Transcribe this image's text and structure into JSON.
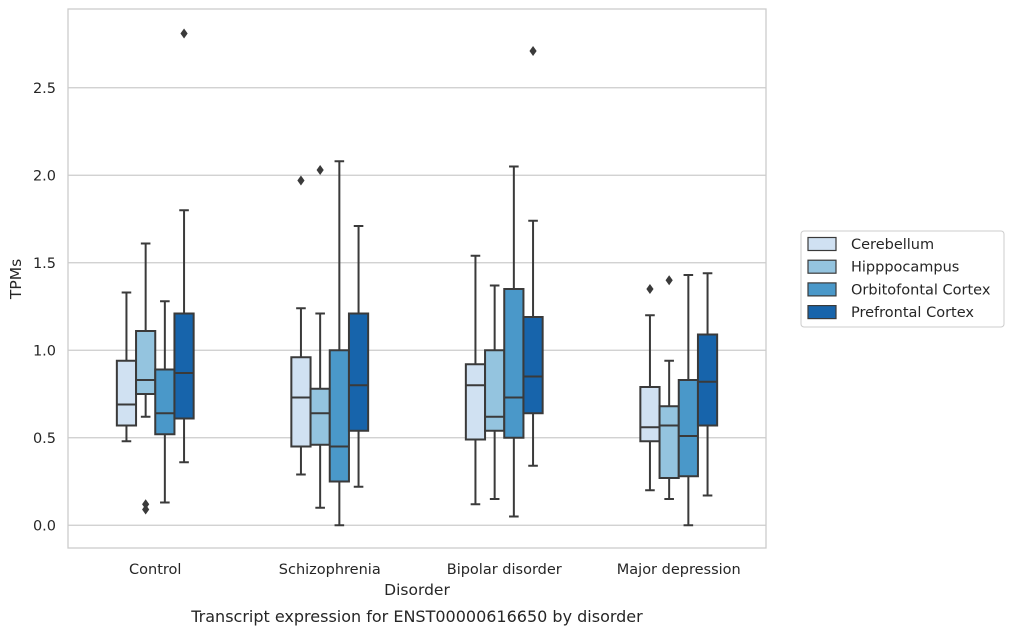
{
  "chart_data": {
    "type": "box",
    "caption": "Transcript expression for ENST00000616650 by disorder",
    "xlabel": "Disorder",
    "ylabel": "TPMs",
    "ylim": [
      -0.13,
      2.95
    ],
    "yticks": [
      0.0,
      0.5,
      1.0,
      1.5,
      2.0,
      2.5
    ],
    "ytick_labels": [
      "0.0",
      "0.5",
      "1.0",
      "1.5",
      "2.0",
      "2.5"
    ],
    "categories": [
      "Control",
      "Schizophrenia",
      "Bipolar disorder",
      "Major depression"
    ],
    "grid": "horizontal",
    "legend_position": "right",
    "series": [
      {
        "name": "Cerebellum",
        "color": "#d0e1f2",
        "boxes": [
          {
            "whislo": 0.48,
            "q1": 0.57,
            "med": 0.69,
            "q3": 0.94,
            "whishi": 1.33,
            "fliers": []
          },
          {
            "whislo": 0.29,
            "q1": 0.45,
            "med": 0.73,
            "q3": 0.96,
            "whishi": 1.24,
            "fliers": [
              1.97
            ]
          },
          {
            "whislo": 0.12,
            "q1": 0.49,
            "med": 0.8,
            "q3": 0.92,
            "whishi": 1.54,
            "fliers": []
          },
          {
            "whislo": 0.2,
            "q1": 0.48,
            "med": 0.56,
            "q3": 0.79,
            "whishi": 1.2,
            "fliers": [
              1.35
            ]
          }
        ]
      },
      {
        "name": "Hipppocampus",
        "color": "#94c4df",
        "boxes": [
          {
            "whislo": 0.62,
            "q1": 0.75,
            "med": 0.83,
            "q3": 1.11,
            "whishi": 1.61,
            "fliers": [
              0.12,
              0.09
            ]
          },
          {
            "whislo": 0.1,
            "q1": 0.46,
            "med": 0.64,
            "q3": 0.78,
            "whishi": 1.21,
            "fliers": [
              2.03
            ]
          },
          {
            "whislo": 0.15,
            "q1": 0.54,
            "med": 0.62,
            "q3": 1.0,
            "whishi": 1.37,
            "fliers": []
          },
          {
            "whislo": 0.15,
            "q1": 0.27,
            "med": 0.57,
            "q3": 0.68,
            "whishi": 0.94,
            "fliers": [
              1.4
            ]
          }
        ]
      },
      {
        "name": "Orbitofontal Cortex",
        "color": "#4a98c9",
        "boxes": [
          {
            "whislo": 0.13,
            "q1": 0.52,
            "med": 0.64,
            "q3": 0.89,
            "whishi": 1.28,
            "fliers": []
          },
          {
            "whislo": 0.0,
            "q1": 0.25,
            "med": 0.45,
            "q3": 1.0,
            "whishi": 2.08,
            "fliers": []
          },
          {
            "whislo": 0.05,
            "q1": 0.5,
            "med": 0.73,
            "q3": 1.35,
            "whishi": 2.05,
            "fliers": []
          },
          {
            "whislo": 0.0,
            "q1": 0.28,
            "med": 0.51,
            "q3": 0.83,
            "whishi": 1.43,
            "fliers": []
          }
        ]
      },
      {
        "name": "Prefrontal Cortex",
        "color": "#1764ab",
        "boxes": [
          {
            "whislo": 0.36,
            "q1": 0.61,
            "med": 0.87,
            "q3": 1.21,
            "whishi": 1.8,
            "fliers": [
              2.81
            ]
          },
          {
            "whislo": 0.22,
            "q1": 0.54,
            "med": 0.8,
            "q3": 1.21,
            "whishi": 1.71,
            "fliers": []
          },
          {
            "whislo": 0.34,
            "q1": 0.64,
            "med": 0.85,
            "q3": 1.19,
            "whishi": 1.74,
            "fliers": [
              2.71
            ]
          },
          {
            "whislo": 0.17,
            "q1": 0.57,
            "med": 0.82,
            "q3": 1.09,
            "whishi": 1.44,
            "fliers": []
          }
        ]
      }
    ]
  }
}
